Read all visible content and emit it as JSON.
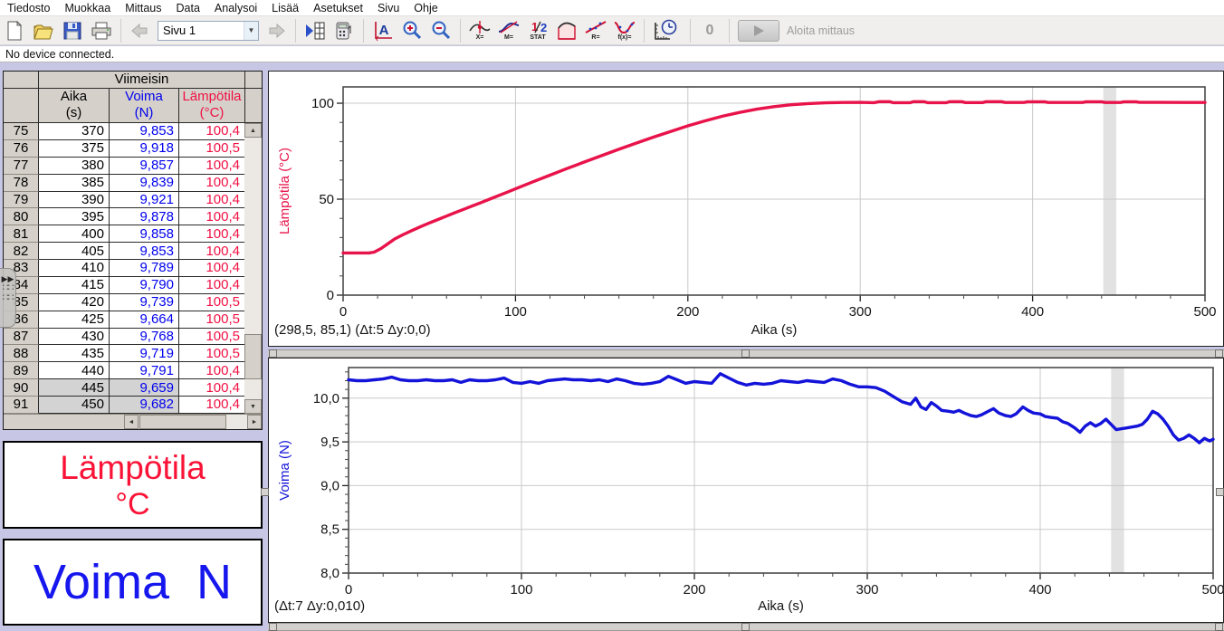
{
  "menu": {
    "items": [
      "Tiedosto",
      "Muokkaa",
      "Mittaus",
      "Data",
      "Analysoi",
      "Lisää",
      "Asetukset",
      "Sivu",
      "Ohje"
    ]
  },
  "toolbar": {
    "page_selector_value": "Sivu 1",
    "autoscale_label": "A",
    "examine_label": "X=",
    "tangent_label": "M=",
    "stat_half_label": "1/2",
    "stat_label": "STAT",
    "linear_fit_label": "R=",
    "curve_fit_label": "f(x)=",
    "zero_label": "0",
    "collect_label": "Aloita mittaus"
  },
  "status_bar": {
    "text": "No device connected."
  },
  "table": {
    "group_header": "Viimeisin",
    "columns": [
      {
        "name": "Aika",
        "unit": "(s)",
        "color": "#000000"
      },
      {
        "name": "Voima",
        "unit": "(N)",
        "color": "#0000ee"
      },
      {
        "name": "Lämpötila",
        "unit": "(°C)",
        "color": "#f01043"
      }
    ],
    "rows": [
      {
        "n": 75,
        "aika": "370",
        "voima": "9,853",
        "lampotila": "100,4",
        "selected": false
      },
      {
        "n": 76,
        "aika": "375",
        "voima": "9,918",
        "lampotila": "100,5",
        "selected": false
      },
      {
        "n": 77,
        "aika": "380",
        "voima": "9,857",
        "lampotila": "100,4",
        "selected": false
      },
      {
        "n": 78,
        "aika": "385",
        "voima": "9,839",
        "lampotila": "100,4",
        "selected": false
      },
      {
        "n": 79,
        "aika": "390",
        "voima": "9,921",
        "lampotila": "100,4",
        "selected": false
      },
      {
        "n": 80,
        "aika": "395",
        "voima": "9,878",
        "lampotila": "100,4",
        "selected": false
      },
      {
        "n": 81,
        "aika": "400",
        "voima": "9,858",
        "lampotila": "100,4",
        "selected": false
      },
      {
        "n": 82,
        "aika": "405",
        "voima": "9,853",
        "lampotila": "100,4",
        "selected": false
      },
      {
        "n": 83,
        "aika": "410",
        "voima": "9,789",
        "lampotila": "100,4",
        "selected": false
      },
      {
        "n": 84,
        "aika": "415",
        "voima": "9,790",
        "lampotila": "100,4",
        "selected": false
      },
      {
        "n": 85,
        "aika": "420",
        "voima": "9,739",
        "lampotila": "100,5",
        "selected": false
      },
      {
        "n": 86,
        "aika": "425",
        "voima": "9,664",
        "lampotila": "100,5",
        "selected": false
      },
      {
        "n": 87,
        "aika": "430",
        "voima": "9,768",
        "lampotila": "100,5",
        "selected": false
      },
      {
        "n": 88,
        "aika": "435",
        "voima": "9,719",
        "lampotila": "100,5",
        "selected": false
      },
      {
        "n": 89,
        "aika": "440",
        "voima": "9,791",
        "lampotila": "100,4",
        "selected": false
      },
      {
        "n": 90,
        "aika": "445",
        "voima": "9,659",
        "lampotila": "100,4",
        "selected": true
      },
      {
        "n": 91,
        "aika": "450",
        "voima": "9,682",
        "lampotila": "100,4",
        "selected": true
      }
    ]
  },
  "labels": {
    "temperature": {
      "line1": "Lämpötila",
      "line2": "°C",
      "color": "#fa1337"
    },
    "force": {
      "text": "Voima  N",
      "color": "#1616ee"
    }
  },
  "chart_data": [
    {
      "type": "line",
      "series_name": "Lämpötila",
      "ylabel": "Lämpötila (°C)",
      "xlabel": "Aika (s)",
      "color": "#e8134a",
      "xlim": [
        0,
        500
      ],
      "ylim": [
        0,
        108.5
      ],
      "grid": true,
      "yticks": [
        {
          "v": 0,
          "label": "0"
        },
        {
          "v": 50,
          "label": "50"
        },
        {
          "v": 100,
          "label": "100"
        }
      ],
      "y_minor_step": 10,
      "xticks": [
        {
          "v": 0,
          "label": "0"
        },
        {
          "v": 100,
          "label": "100"
        },
        {
          "v": 200,
          "label": "200"
        },
        {
          "v": 300,
          "label": "300"
        },
        {
          "v": 400,
          "label": "400"
        },
        {
          "v": 500,
          "label": "500"
        }
      ],
      "x_minor_step": 20,
      "cursor_band": [
        441,
        448.5
      ],
      "status": "(298,5, 85,1) (Δt:5 Δy:0,0)",
      "points": [
        [
          0,
          22
        ],
        [
          6,
          22
        ],
        [
          12,
          22
        ],
        [
          15,
          22
        ],
        [
          18,
          22.4
        ],
        [
          22,
          24.3
        ],
        [
          26,
          26.8
        ],
        [
          30,
          29.3
        ],
        [
          35,
          31.6
        ],
        [
          40,
          33.7
        ],
        [
          45,
          35.7
        ],
        [
          50,
          37.6
        ],
        [
          55,
          39.4
        ],
        [
          60,
          41.2
        ],
        [
          65,
          43
        ],
        [
          70,
          44.7
        ],
        [
          75,
          46.5
        ],
        [
          80,
          48.2
        ],
        [
          85,
          50
        ],
        [
          90,
          51.8
        ],
        [
          95,
          53.6
        ],
        [
          100,
          55.4
        ],
        [
          110,
          59
        ],
        [
          120,
          62.5
        ],
        [
          130,
          66
        ],
        [
          140,
          69.4
        ],
        [
          150,
          72.7
        ],
        [
          160,
          76
        ],
        [
          170,
          79.2
        ],
        [
          180,
          82.3
        ],
        [
          190,
          85.3
        ],
        [
          200,
          88.2
        ],
        [
          210,
          90.8
        ],
        [
          220,
          93.2
        ],
        [
          230,
          95.2
        ],
        [
          240,
          96.9
        ],
        [
          250,
          98.2
        ],
        [
          260,
          99.2
        ],
        [
          270,
          99.8
        ],
        [
          280,
          100.2
        ],
        [
          290,
          100.4
        ],
        [
          300,
          100.45
        ],
        [
          308,
          100.3
        ],
        [
          311,
          100.8
        ],
        [
          317,
          100.8
        ],
        [
          319,
          100.3
        ],
        [
          329,
          100.3
        ],
        [
          331,
          100.8
        ],
        [
          337,
          100.8
        ],
        [
          339,
          100.3
        ],
        [
          350,
          100.3
        ],
        [
          352,
          100.8
        ],
        [
          359,
          100.8
        ],
        [
          361,
          100.35
        ],
        [
          371,
          100.35
        ],
        [
          373,
          100.8
        ],
        [
          382,
          100.8
        ],
        [
          384,
          100.4
        ],
        [
          395,
          100.4
        ],
        [
          397,
          100.75
        ],
        [
          407,
          100.75
        ],
        [
          409,
          100.4
        ],
        [
          419,
          100.4
        ],
        [
          429,
          100.4
        ],
        [
          431,
          100.75
        ],
        [
          440,
          100.75
        ],
        [
          442,
          100.4
        ],
        [
          451,
          100.4
        ],
        [
          453,
          100.75
        ],
        [
          460,
          100.75
        ],
        [
          462,
          100.45
        ],
        [
          474,
          100.45
        ],
        [
          488,
          100.4
        ],
        [
          500,
          100.4
        ]
      ]
    },
    {
      "type": "line",
      "series_name": "Voima",
      "ylabel": "Voima (N)",
      "xlabel": "Aika (s)",
      "color": "#1313d9",
      "xlim": [
        0,
        500
      ],
      "ylim": [
        8.0,
        10.35
      ],
      "grid": true,
      "yticks": [
        {
          "v": 8.0,
          "label": "8,0"
        },
        {
          "v": 8.5,
          "label": "8,5"
        },
        {
          "v": 9.0,
          "label": "9,0"
        },
        {
          "v": 9.5,
          "label": "9,5"
        },
        {
          "v": 10.0,
          "label": "10,0"
        }
      ],
      "y_minor_step": 0.1,
      "xticks": [
        {
          "v": 0,
          "label": "0"
        },
        {
          "v": 100,
          "label": "100"
        },
        {
          "v": 200,
          "label": "200"
        },
        {
          "v": 300,
          "label": "300"
        },
        {
          "v": 400,
          "label": "400"
        },
        {
          "v": 500,
          "label": "500"
        }
      ],
      "x_minor_step": 20,
      "cursor_band": [
        441,
        448.5
      ],
      "status": "(Δt:7 Δy:0,010)",
      "points": [
        [
          0,
          10.21
        ],
        [
          5,
          10.2
        ],
        [
          10,
          10.2
        ],
        [
          15,
          10.21
        ],
        [
          20,
          10.22
        ],
        [
          25,
          10.24
        ],
        [
          30,
          10.21
        ],
        [
          35,
          10.2
        ],
        [
          40,
          10.2
        ],
        [
          45,
          10.21
        ],
        [
          50,
          10.2
        ],
        [
          55,
          10.2
        ],
        [
          60,
          10.21
        ],
        [
          65,
          10.18
        ],
        [
          70,
          10.21
        ],
        [
          75,
          10.2
        ],
        [
          80,
          10.2
        ],
        [
          85,
          10.21
        ],
        [
          90,
          10.23
        ],
        [
          95,
          10.18
        ],
        [
          100,
          10.17
        ],
        [
          105,
          10.19
        ],
        [
          110,
          10.17
        ],
        [
          115,
          10.2
        ],
        [
          120,
          10.21
        ],
        [
          125,
          10.22
        ],
        [
          130,
          10.21
        ],
        [
          135,
          10.21
        ],
        [
          140,
          10.2
        ],
        [
          145,
          10.21
        ],
        [
          150,
          10.19
        ],
        [
          155,
          10.22
        ],
        [
          160,
          10.2
        ],
        [
          165,
          10.17
        ],
        [
          170,
          10.16
        ],
        [
          175,
          10.17
        ],
        [
          180,
          10.19
        ],
        [
          185,
          10.25
        ],
        [
          190,
          10.21
        ],
        [
          195,
          10.17
        ],
        [
          200,
          10.19
        ],
        [
          205,
          10.18
        ],
        [
          210,
          10.17
        ],
        [
          215,
          10.28
        ],
        [
          220,
          10.23
        ],
        [
          225,
          10.18
        ],
        [
          230,
          10.15
        ],
        [
          235,
          10.17
        ],
        [
          240,
          10.16
        ],
        [
          245,
          10.17
        ],
        [
          250,
          10.2
        ],
        [
          255,
          10.19
        ],
        [
          260,
          10.18
        ],
        [
          265,
          10.2
        ],
        [
          270,
          10.19
        ],
        [
          275,
          10.18
        ],
        [
          280,
          10.22
        ],
        [
          285,
          10.2
        ],
        [
          290,
          10.16
        ],
        [
          295,
          10.13
        ],
        [
          300,
          10.13
        ],
        [
          305,
          10.12
        ],
        [
          310,
          10.08
        ],
        [
          315,
          10.02
        ],
        [
          320,
          9.96
        ],
        [
          325,
          9.93
        ],
        [
          328,
          10
        ],
        [
          331,
          9.9
        ],
        [
          334,
          9.87
        ],
        [
          337,
          9.95
        ],
        [
          340,
          9.91
        ],
        [
          343,
          9.86
        ],
        [
          347,
          9.85
        ],
        [
          350,
          9.84
        ],
        [
          353,
          9.86
        ],
        [
          356,
          9.83
        ],
        [
          360,
          9.8
        ],
        [
          363,
          9.79
        ],
        [
          366,
          9.81
        ],
        [
          370,
          9.85
        ],
        [
          373,
          9.88
        ],
        [
          376,
          9.83
        ],
        [
          380,
          9.8
        ],
        [
          383,
          9.79
        ],
        [
          386,
          9.82
        ],
        [
          390,
          9.9
        ],
        [
          393,
          9.86
        ],
        [
          396,
          9.83
        ],
        [
          400,
          9.82
        ],
        [
          403,
          9.79
        ],
        [
          406,
          9.78
        ],
        [
          410,
          9.77
        ],
        [
          413,
          9.73
        ],
        [
          416,
          9.71
        ],
        [
          420,
          9.66
        ],
        [
          423,
          9.61
        ],
        [
          426,
          9.68
        ],
        [
          429,
          9.72
        ],
        [
          432,
          9.68
        ],
        [
          435,
          9.71
        ],
        [
          438,
          9.76
        ],
        [
          441,
          9.7
        ],
        [
          444,
          9.64
        ],
        [
          447,
          9.65
        ],
        [
          450,
          9.66
        ],
        [
          453,
          9.67
        ],
        [
          456,
          9.68
        ],
        [
          459,
          9.7
        ],
        [
          462,
          9.76
        ],
        [
          465,
          9.85
        ],
        [
          468,
          9.82
        ],
        [
          471,
          9.76
        ],
        [
          474,
          9.68
        ],
        [
          477,
          9.58
        ],
        [
          480,
          9.52
        ],
        [
          483,
          9.54
        ],
        [
          486,
          9.58
        ],
        [
          489,
          9.54
        ],
        [
          492,
          9.49
        ],
        [
          495,
          9.54
        ],
        [
          498,
          9.51
        ],
        [
          500,
          9.53
        ]
      ]
    }
  ]
}
